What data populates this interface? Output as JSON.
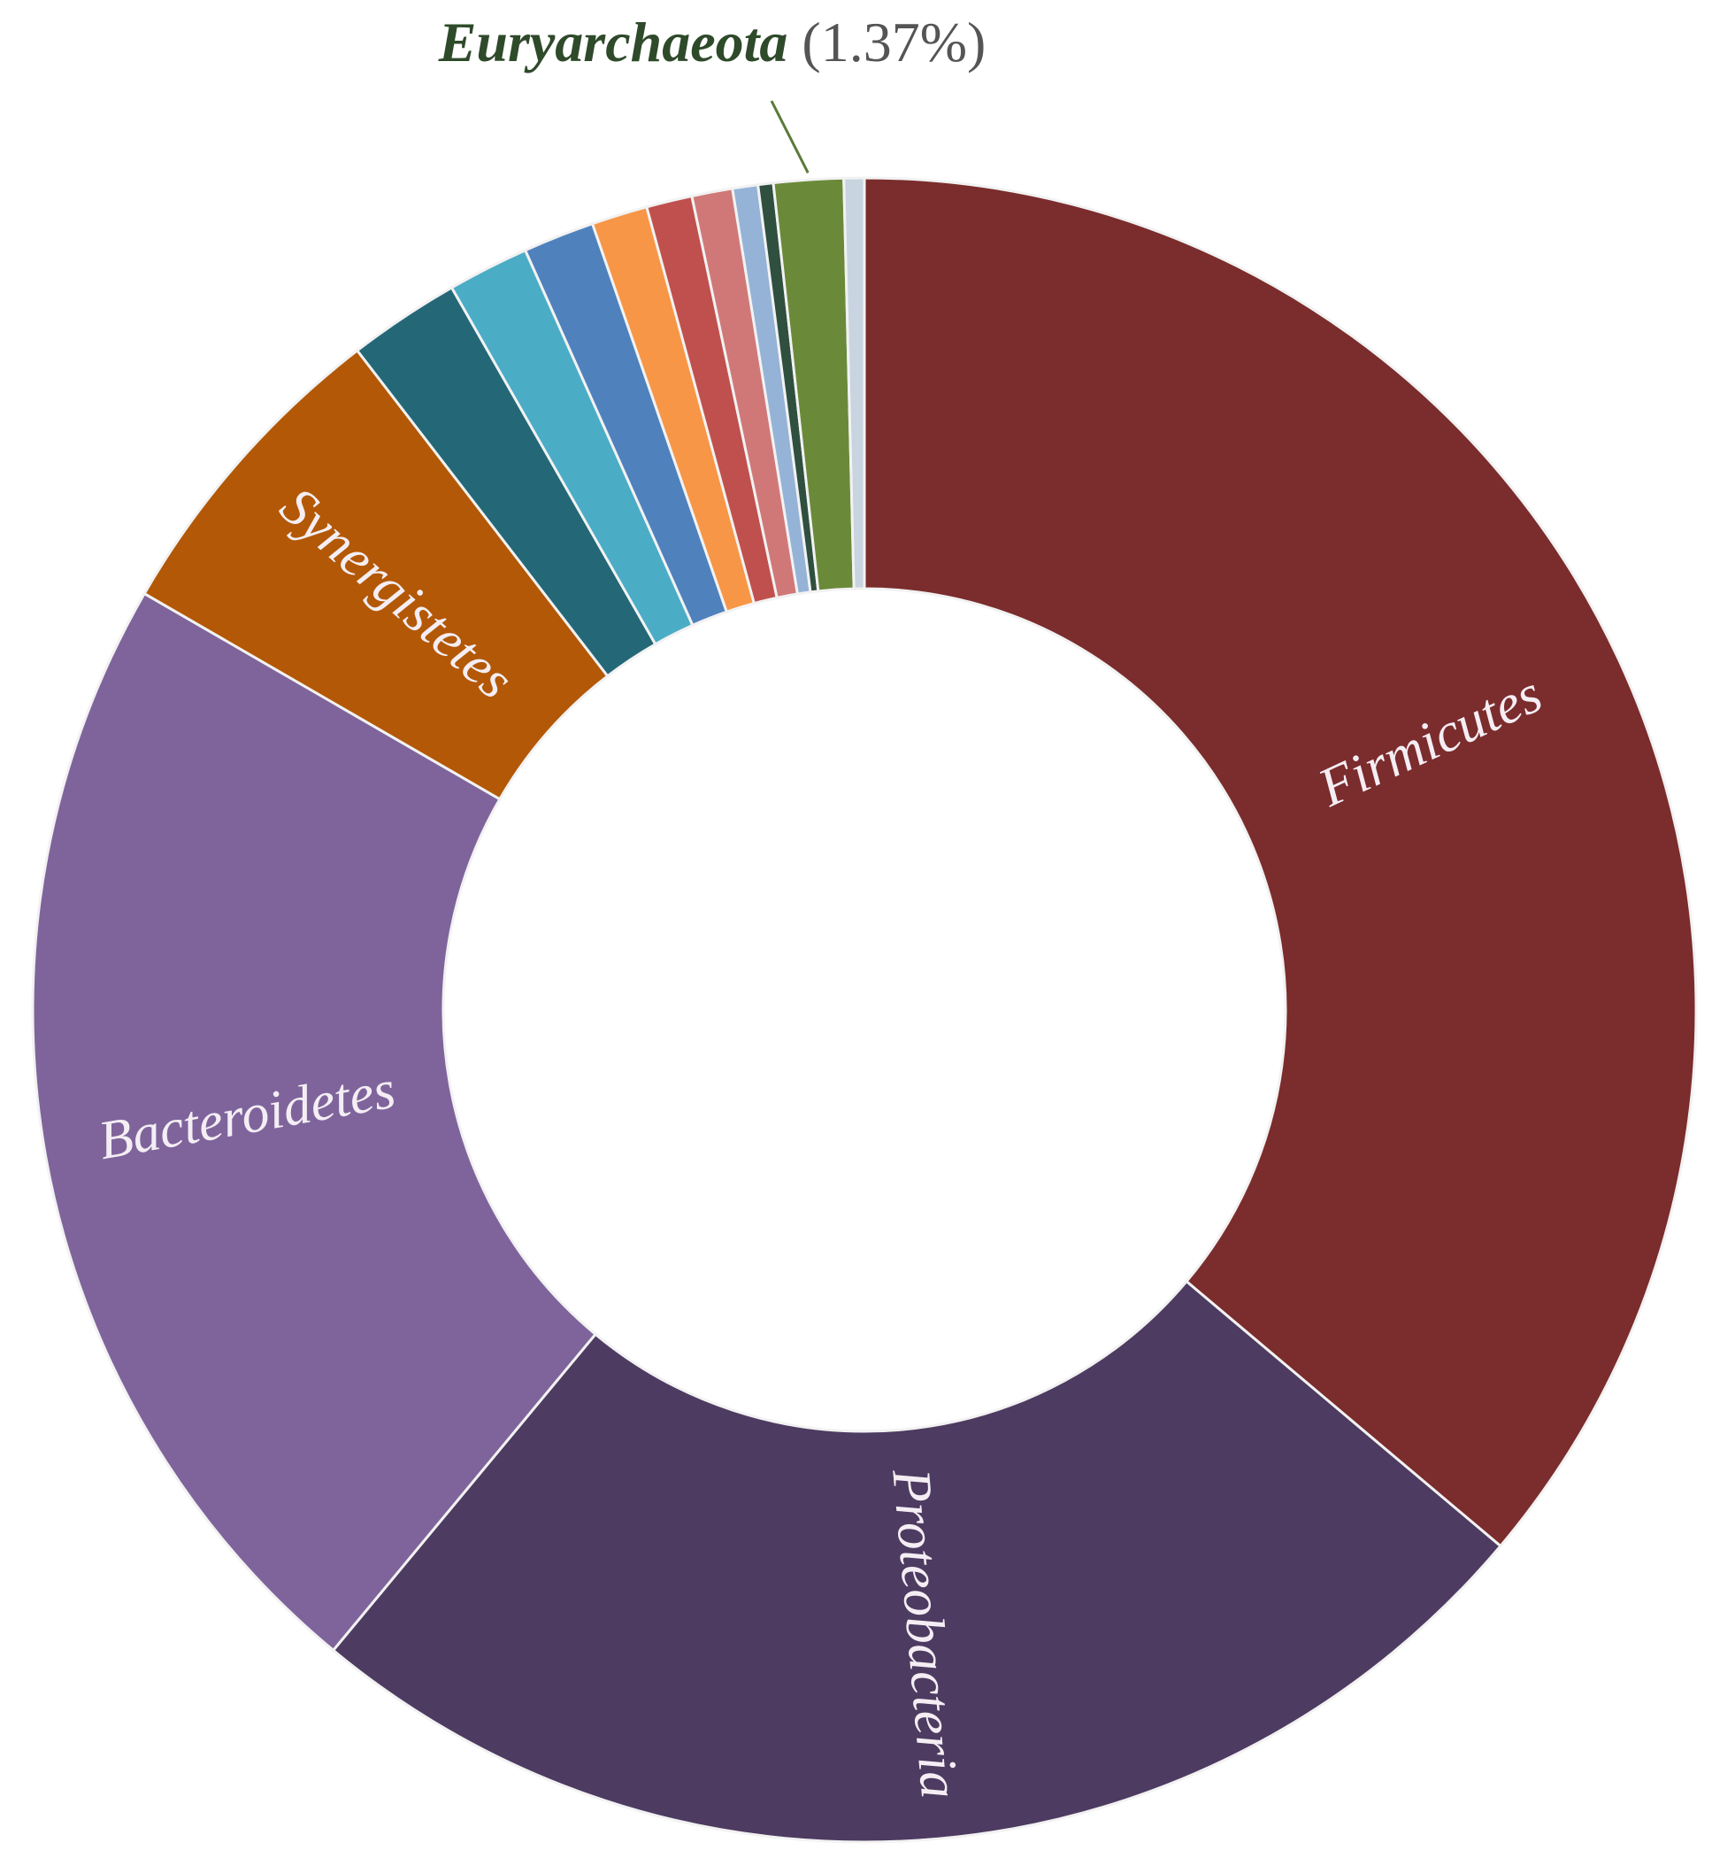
{
  "chart_data": {
    "type": "donut",
    "categories": [
      "Firmicutes",
      "Proteobacteria",
      "Bacteroidetes",
      "Synergistetes",
      null,
      null,
      null,
      null,
      null,
      null,
      null,
      null,
      "Euryarchaeota",
      null
    ],
    "values": [
      36.6,
      25.2,
      22.6,
      6.3,
      2.2,
      1.6,
      1.4,
      1.1,
      0.9,
      0.8,
      0.5,
      0.3,
      1.37,
      0.4
    ],
    "value_labels": [
      null,
      null,
      null,
      null,
      null,
      null,
      null,
      null,
      null,
      null,
      null,
      null,
      "(1.37%)",
      null
    ],
    "colors": [
      "#7b2c2c",
      "#4d3b61",
      "#7f649c",
      "#b35806",
      "#246878",
      "#4bacc6",
      "#4f81bd",
      "#f79646",
      "#c0504d",
      "#d07878",
      "#95b3d7",
      "#2f4f3f",
      "#6a8a3a",
      "#c8d4e0"
    ]
  }
}
